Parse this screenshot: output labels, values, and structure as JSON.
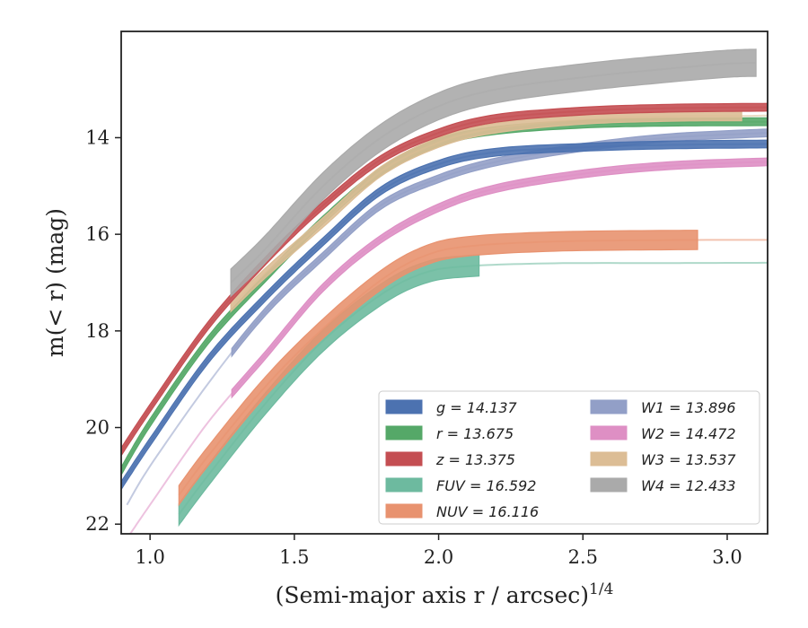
{
  "chart_data": {
    "type": "line",
    "xlabel": "(Semi-major axis r / arcsec)",
    "xlabel_exponent": "1/4",
    "ylabel": "m(< r) (mag)",
    "xlim": [
      0.9,
      3.14
    ],
    "ylim": [
      22.2,
      11.8
    ],
    "y_inverted": true,
    "grid": false,
    "legend_position": "lower-right",
    "x_ticks": [
      {
        "value": 1.0,
        "label": "1.0"
      },
      {
        "value": 1.5,
        "label": "1.5"
      },
      {
        "value": 2.0,
        "label": "2.0"
      },
      {
        "value": 2.5,
        "label": "2.5"
      },
      {
        "value": 3.0,
        "label": "3.0"
      }
    ],
    "y_ticks": [
      {
        "value": 14,
        "label": "14"
      },
      {
        "value": 16,
        "label": "16"
      },
      {
        "value": 18,
        "label": "18"
      },
      {
        "value": 20,
        "label": "20"
      },
      {
        "value": 22,
        "label": "22"
      }
    ],
    "legend": [
      {
        "band": "g",
        "value": "14.137",
        "color": "#4c72b0"
      },
      {
        "band": "r",
        "value": "13.675",
        "color": "#55a868"
      },
      {
        "band": "z",
        "value": "13.375",
        "color": "#c44e52"
      },
      {
        "band": "FUV",
        "value": "16.592",
        "color": "#6dba9f"
      },
      {
        "band": "NUV",
        "value": "16.116",
        "color": "#e8926f"
      },
      {
        "band": "W1",
        "value": "13.896",
        "color": "#929fc7"
      },
      {
        "band": "W2",
        "value": "14.472",
        "color": "#de8fc4"
      },
      {
        "band": "W3",
        "value": "13.537",
        "color": "#dcbd95"
      },
      {
        "band": "W4",
        "value": "12.433",
        "color": "#aaaaaa"
      }
    ],
    "series": [
      {
        "band": "g",
        "color": "#4c72b0",
        "band_width": 0.08,
        "x": [
          0.9,
          1.0,
          1.2,
          1.4,
          1.6,
          1.8,
          2.0,
          2.2,
          2.5,
          2.8,
          3.14
        ],
        "y": [
          21.2,
          20.3,
          18.6,
          17.3,
          16.15,
          15.1,
          14.55,
          14.3,
          14.2,
          14.15,
          14.13
        ],
        "mask_from": null,
        "mask_to": null
      },
      {
        "band": "r",
        "color": "#55a868",
        "band_width": 0.08,
        "x": [
          0.9,
          1.0,
          1.2,
          1.4,
          1.6,
          1.8,
          2.0,
          2.2,
          2.5,
          2.8,
          3.14
        ],
        "y": [
          20.9,
          19.9,
          18.2,
          16.9,
          15.7,
          14.7,
          14.1,
          13.85,
          13.72,
          13.68,
          13.67
        ],
        "mask_from": null,
        "mask_to": null
      },
      {
        "band": "z",
        "color": "#c44e52",
        "band_width": 0.08,
        "x": [
          0.9,
          1.0,
          1.2,
          1.4,
          1.6,
          1.8,
          2.0,
          2.2,
          2.5,
          2.8,
          3.14
        ],
        "y": [
          20.5,
          19.6,
          17.9,
          16.55,
          15.4,
          14.45,
          13.9,
          13.6,
          13.45,
          13.39,
          13.37
        ],
        "mask_from": null,
        "mask_to": null
      },
      {
        "band": "FUV",
        "color": "#6dba9f",
        "band_width": 0.22,
        "x": [
          1.1,
          1.2,
          1.4,
          1.6,
          1.8,
          1.95,
          2.1,
          2.4,
          2.8,
          3.14
        ],
        "y": [
          21.8,
          21.0,
          19.5,
          18.2,
          17.25,
          16.8,
          16.66,
          16.6,
          16.595,
          16.59
        ],
        "mask_from": 1.1,
        "mask_to": 2.15
      },
      {
        "band": "NUV",
        "color": "#e8926f",
        "band_width": 0.2,
        "x": [
          1.1,
          1.2,
          1.4,
          1.6,
          1.8,
          1.95,
          2.1,
          2.4,
          2.8,
          3.14
        ],
        "y": [
          21.4,
          20.6,
          19.15,
          17.95,
          16.95,
          16.45,
          16.25,
          16.15,
          16.12,
          16.116
        ],
        "mask_from": 1.1,
        "mask_to": 2.93
      },
      {
        "band": "W1",
        "color": "#929fc7",
        "band_width": 0.08,
        "x": [
          0.92,
          1.0,
          1.2,
          1.4,
          1.6,
          1.8,
          2.0,
          2.2,
          2.5,
          2.8,
          3.14
        ],
        "y": [
          21.6,
          20.8,
          19.1,
          17.6,
          16.45,
          15.4,
          14.85,
          14.5,
          14.2,
          14.0,
          13.9
        ],
        "mask_from": 1.28,
        "mask_to": 3.14
      },
      {
        "band": "W2",
        "color": "#de8fc4",
        "band_width": 0.08,
        "x": [
          0.92,
          1.0,
          1.2,
          1.4,
          1.6,
          1.8,
          2.0,
          2.2,
          2.5,
          2.8,
          3.14
        ],
        "y": [
          22.3,
          21.6,
          19.9,
          18.5,
          17.1,
          16.1,
          15.45,
          15.05,
          14.75,
          14.58,
          14.5
        ],
        "mask_from": 1.28,
        "mask_to": 3.14
      },
      {
        "band": "W3",
        "color": "#dcbd95",
        "band_width": 0.1,
        "x": [
          1.28,
          1.4,
          1.6,
          1.8,
          2.0,
          2.2,
          2.5,
          2.8,
          3.05,
          3.14
        ],
        "y": [
          17.5,
          16.8,
          15.75,
          14.7,
          14.1,
          13.8,
          13.62,
          13.56,
          13.55,
          13.54
        ],
        "mask_from": 1.28,
        "mask_to": 3.05
      },
      {
        "band": "W4",
        "color": "#aaaaaa",
        "band_width": 0.28,
        "x": [
          1.28,
          1.4,
          1.6,
          1.8,
          2.0,
          2.2,
          2.5,
          2.8,
          3.0,
          3.1
        ],
        "y": [
          17.0,
          16.3,
          15.0,
          14.0,
          13.35,
          13.0,
          12.75,
          12.57,
          12.47,
          12.45
        ],
        "mask_from": 1.28,
        "mask_to": 3.1
      }
    ]
  }
}
